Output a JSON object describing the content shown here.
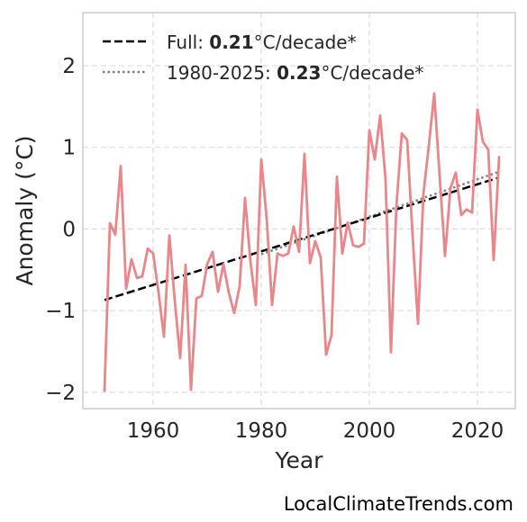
{
  "chart_data": {
    "type": "line",
    "xlabel": "Year",
    "ylabel": "Anomaly (°C)",
    "xlim": [
      1947,
      2027
    ],
    "ylim": [
      -2.2,
      2.65
    ],
    "xticks": [
      1960,
      1980,
      2000,
      2020
    ],
    "yticks": [
      -2,
      -1,
      0,
      1,
      2
    ],
    "ytick_labels": [
      "−2",
      "−1",
      "0",
      "1",
      "2"
    ],
    "grid": true,
    "legend_position": "top-left",
    "colors": {
      "series": "#e8868a",
      "full_trend": "#000000",
      "recent_trend": "#808080",
      "grid": "#dddddd",
      "frame": "#cccccc"
    },
    "series": [
      {
        "x": [
          1951,
          1952,
          1953,
          1954,
          1955,
          1956,
          1957,
          1958,
          1959,
          1960,
          1961,
          1962,
          1963,
          1964,
          1965,
          1966,
          1967,
          1968,
          1969,
          1970,
          1971,
          1972,
          1973,
          1974,
          1975,
          1976,
          1977,
          1978,
          1979,
          1980,
          1981,
          1982,
          1983,
          1984,
          1985,
          1986,
          1987,
          1988,
          1989,
          1990,
          1991,
          1992,
          1993,
          1994,
          1995,
          1996,
          1997,
          1998,
          1999,
          2000,
          2001,
          2002,
          2003,
          2004,
          2005,
          2006,
          2007,
          2008,
          2009,
          2010,
          2011,
          2012,
          2013,
          2014,
          2015,
          2016,
          2017,
          2018,
          2019,
          2020,
          2021,
          2022,
          2023,
          2024
        ],
        "values": [
          -1.98,
          0.07,
          -0.07,
          0.77,
          -0.73,
          -0.37,
          -0.6,
          -0.58,
          -0.24,
          -0.3,
          -0.78,
          -1.32,
          -0.08,
          -0.88,
          -1.58,
          -0.44,
          -1.97,
          -0.85,
          -0.82,
          -0.43,
          -0.28,
          -0.77,
          -0.43,
          -0.78,
          -1.03,
          -0.7,
          0.38,
          -0.4,
          -0.93,
          0.85,
          0.13,
          -0.93,
          -0.3,
          -0.33,
          -0.3,
          0.03,
          -0.28,
          0.92,
          -0.42,
          -0.15,
          -0.35,
          -1.54,
          -1.3,
          0.64,
          -0.3,
          0.08,
          -0.2,
          -0.22,
          -0.18,
          1.21,
          0.85,
          1.39,
          0.6,
          -1.51,
          0.28,
          1.17,
          1.09,
          -0.08,
          -1.16,
          0.43,
          1.02,
          1.66,
          0.65,
          -0.33,
          0.5,
          0.69,
          0.17,
          0.24,
          0.2,
          1.46,
          1.07,
          0.97,
          -0.38,
          0.88
        ]
      }
    ],
    "trends": [
      {
        "label_prefix": "Full: ",
        "value": "0.21",
        "label_suffix": "°C/decade*",
        "style": "dashed",
        "x": [
          1951,
          2024
        ],
        "y": [
          -0.87,
          0.63
        ]
      },
      {
        "label_prefix": "1980-2025: ",
        "value": "0.23",
        "label_suffix": "°C/decade*",
        "style": "dotted",
        "x": [
          1980,
          2024
        ],
        "y": [
          -0.31,
          0.7
        ]
      }
    ]
  },
  "credit": "LocalClimateTrends.com"
}
